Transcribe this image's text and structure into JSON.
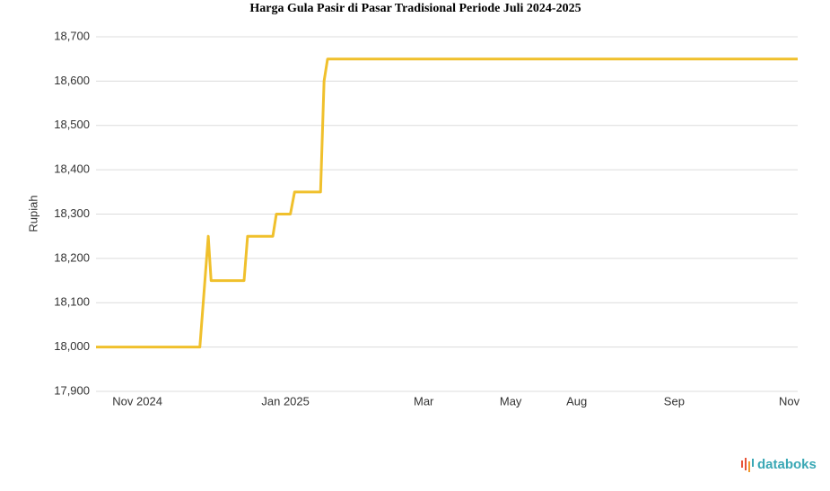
{
  "chart_data": {
    "type": "line",
    "title": "Harga Gula Pasir di Pasar Tradisional Periode Juli 2024-2025",
    "y_label": "Rupiah",
    "source": "databoks",
    "x": [
      0,
      14.8,
      16.0,
      16.4,
      21.1,
      21.6,
      25.2,
      25.7,
      27.7,
      28.3,
      32.0,
      32.5,
      33.0,
      100
    ],
    "series": [
      {
        "name": "Harga",
        "color": "#f0c02c",
        "values": [
          18000,
          18000,
          18250,
          18150,
          18150,
          18250,
          18250,
          18300,
          18300,
          18350,
          18350,
          18600,
          18650,
          18650
        ]
      }
    ],
    "xlim": [
      0,
      100
    ],
    "xticks": [
      {
        "value": 5.9,
        "label": "Nov 2024"
      },
      {
        "value": 27.0,
        "label": "Jan 2025"
      },
      {
        "value": 46.7,
        "label": "Mar"
      },
      {
        "value": 59.1,
        "label": "May"
      },
      {
        "value": 68.5,
        "label": "Aug"
      },
      {
        "value": 82.4,
        "label": "Sep"
      },
      {
        "value": 98.8,
        "label": "Nov"
      }
    ],
    "ylim": [
      17900,
      18700
    ],
    "yticks": [
      {
        "value": 17900,
        "label": "17,900"
      },
      {
        "value": 18000,
        "label": "18,000"
      },
      {
        "value": 18100,
        "label": "18,100"
      },
      {
        "value": 18200,
        "label": "18,200"
      },
      {
        "value": 18300,
        "label": "18,300"
      },
      {
        "value": 18400,
        "label": "18,400"
      },
      {
        "value": 18500,
        "label": "18,500"
      },
      {
        "value": 18600,
        "label": "18,600"
      },
      {
        "value": 18700,
        "label": "18,700"
      }
    ],
    "grid": true
  }
}
